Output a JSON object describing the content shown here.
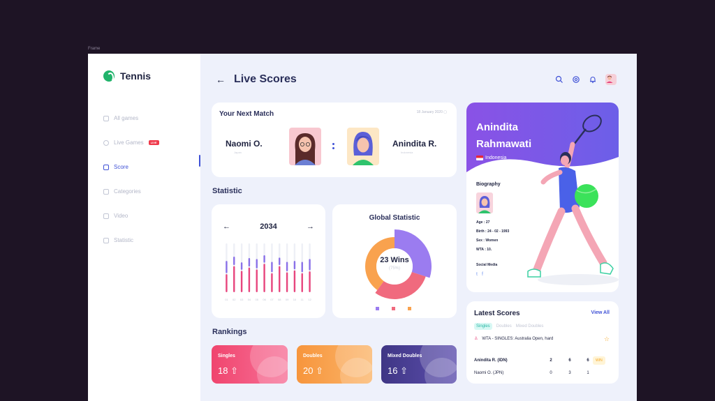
{
  "frame_label": "Frame",
  "app": {
    "name": "Tennis"
  },
  "sidebar": {
    "items": [
      {
        "label": "All games"
      },
      {
        "label": "Live Games",
        "badge": "LIVE"
      },
      {
        "label": "Score",
        "active": true
      },
      {
        "label": "Categories"
      },
      {
        "label": "Video"
      },
      {
        "label": "Statistic"
      }
    ]
  },
  "header": {
    "back_icon": "←",
    "title": "Live Scores"
  },
  "next_match": {
    "title": "Your Next Match",
    "date": "18 January 2020",
    "player1": {
      "name": "Naomi O.",
      "country": "Japan"
    },
    "player2": {
      "name": "Anindita R.",
      "country": "Indonesia"
    }
  },
  "statistic": {
    "section_label": "Statistic",
    "year": "2034",
    "prev_icon": "←",
    "next_icon": "→"
  },
  "chart_data": {
    "type": "bar",
    "categories": [
      "01",
      "02",
      "03",
      "04",
      "05",
      "06",
      "07",
      "08",
      "09",
      "10",
      "11",
      "12"
    ],
    "series": [
      {
        "values": [
          38,
          55,
          45,
          52,
          48,
          60,
          40,
          55,
          42,
          46,
          40,
          44
        ]
      },
      {
        "values": [
          28,
          20,
          18,
          20,
          22,
          18,
          24,
          18,
          22,
          20,
          24,
          26
        ]
      }
    ],
    "colors": [
      "#e8457d",
      "#8a71e8"
    ]
  },
  "global_statistic": {
    "title": "Global Statistic",
    "wins": "23 Wins",
    "percent": "(75%)",
    "slices": [
      {
        "value": 30,
        "color": "#9b7cf0"
      },
      {
        "value": 30,
        "color": "#f06a7e"
      },
      {
        "value": 40,
        "color": "#f9a24e"
      }
    ]
  },
  "rankings": {
    "section_label": "Rankings",
    "items": [
      {
        "label": "Singles",
        "value": "18",
        "color": "#f0456e"
      },
      {
        "label": "Doubles",
        "value": "20",
        "color": "#f79b46"
      },
      {
        "label": "Mixed Doubles",
        "value": "16",
        "color": "#4a3f8a"
      }
    ],
    "arrow_icon": "⇧"
  },
  "profile": {
    "name": "Anindita Rahmawati",
    "country": "Indonesia",
    "bio_title": "Biography",
    "age": "Age : 27",
    "birth": "Birth : 24 - 02 - 1993",
    "sex": "Sex : Women",
    "wta": "WTA : 10.",
    "social_title": "Social Media",
    "twitter_icon": "t",
    "facebook_icon": "f"
  },
  "latest_scores": {
    "title": "Latest Scores",
    "view_all": "View All",
    "tabs": [
      "Singles",
      "Doubles",
      "Mixed Doubles"
    ],
    "match": "WTA - SINGLES: Australia Open, hard",
    "rows": [
      {
        "name": "Anindita R. (IDN)",
        "s1": "2",
        "s2": "6",
        "s3": "6",
        "tag": "WIN"
      },
      {
        "name": "Naomi O. (JPN)",
        "s1": "0",
        "s2": "3",
        "s3": "1"
      }
    ]
  }
}
